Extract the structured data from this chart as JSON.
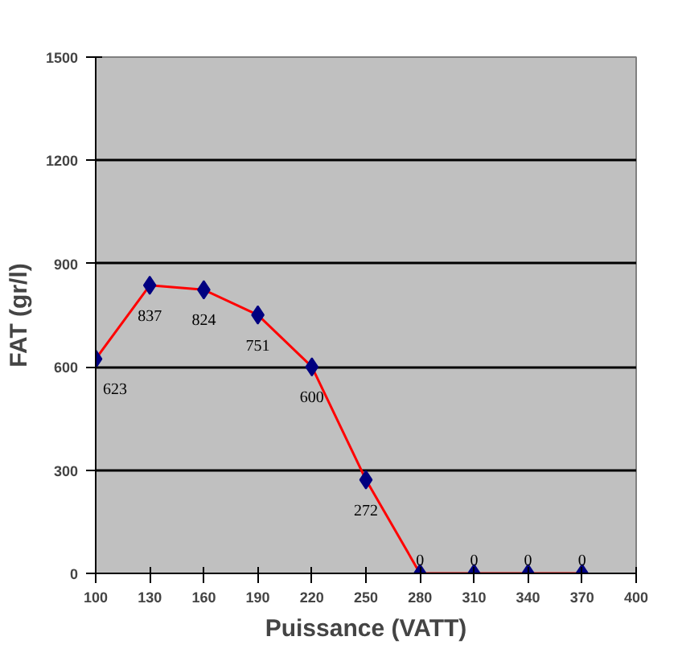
{
  "chart_data": {
    "type": "line",
    "xlabel": "Puissance (VATT)",
    "ylabel": "FAT (gr/l)",
    "x": [
      100,
      130,
      160,
      190,
      220,
      250,
      280,
      310,
      340,
      370
    ],
    "series": [
      {
        "color": "#ff0000",
        "marker": "none",
        "values": [
          623,
          837,
          824,
          751,
          600,
          272,
          0,
          0,
          0,
          0
        ]
      },
      {
        "type": "scatter",
        "color": "#000080",
        "marker": "diamond",
        "data_labels": true,
        "values": [
          623,
          837,
          824,
          751,
          600,
          272,
          0,
          0,
          0,
          0
        ]
      }
    ],
    "xlim": [
      100,
      400
    ],
    "xticks": [
      100,
      130,
      160,
      190,
      220,
      250,
      280,
      310,
      340,
      370,
      400
    ],
    "ylim": [
      0,
      1500
    ],
    "yticks": [
      0,
      300,
      600,
      900,
      1200,
      1500
    ],
    "grid": "y"
  }
}
